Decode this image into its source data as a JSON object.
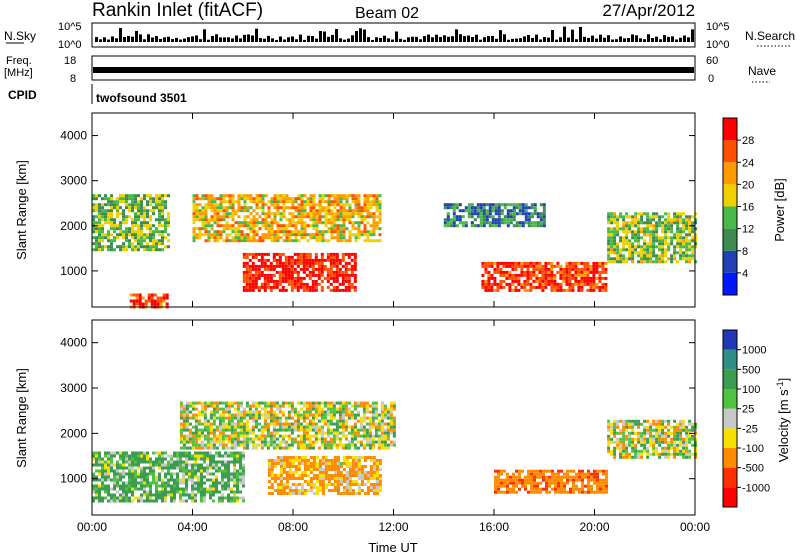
{
  "header": {
    "title": "Rankin Inlet (fitACF)",
    "beam": "Beam 02",
    "date": "27/Apr/2012"
  },
  "noise_panel": {
    "left_label": "N.Sky",
    "right_label": "N.Search",
    "left_top_tick": "10^5",
    "left_bottom_tick": "10^0",
    "right_top_tick": "10^5",
    "right_bottom_tick": "10^0"
  },
  "freq_panel": {
    "left_label_top": "Freq.",
    "left_label_unit": "[MHz]",
    "right_label": "Nave",
    "left_top_tick": "18",
    "left_bottom_tick": "8",
    "right_top_tick": "60",
    "right_bottom_tick": "0"
  },
  "cpid": {
    "label": "CPID",
    "value": "twofsound 3501"
  },
  "x_axis": {
    "ticks": [
      "00:00",
      "04:00",
      "08:00",
      "12:00",
      "16:00",
      "20:00",
      "00:00"
    ],
    "label": "Time UT"
  },
  "colors": {
    "power": [
      "#0018ff",
      "#1f40b8",
      "#3c8c50",
      "#48b848",
      "#f0d000",
      "#ff9a00",
      "#ff5000",
      "#ff0000"
    ],
    "velocity": [
      "#2038b8",
      "#2e8f86",
      "#3c9c50",
      "#52c040",
      "#c8c8c8",
      "#f5e000",
      "#ff8c00",
      "#ff3000",
      "#ff0000"
    ]
  },
  "chart_data": [
    {
      "type": "heatmap",
      "panel": "power",
      "ylabel": "Slant Range [km]",
      "xlabel": "",
      "xlim": [
        "00:00",
        "24:00"
      ],
      "ylim": [
        200,
        4500
      ],
      "yticks": [
        "1000",
        "2000",
        "3000",
        "4000"
      ],
      "colorbar_label": "Power [dB]",
      "colorbar_ticks": [
        "4",
        "8",
        "12",
        "16",
        "20",
        "24",
        "28"
      ],
      "dominant_regions": [
        {
          "time": [
            "00:00",
            "03:00"
          ],
          "range_km": [
            1500,
            2700
          ],
          "power_db": 14
        },
        {
          "time": [
            "01:30",
            "03:00"
          ],
          "range_km": [
            200,
            500
          ],
          "power_db": 28
        },
        {
          "time": [
            "04:00",
            "11:30"
          ],
          "range_km": [
            1700,
            2700
          ],
          "power_db": 20
        },
        {
          "time": [
            "06:00",
            "10:30"
          ],
          "range_km": [
            600,
            1400
          ],
          "power_db": 30
        },
        {
          "time": [
            "15:30",
            "20:30"
          ],
          "range_km": [
            600,
            1200
          ],
          "power_db": 28
        },
        {
          "time": [
            "14:00",
            "18:00"
          ],
          "range_km": [
            2000,
            2500
          ],
          "power_db": 10
        },
        {
          "time": [
            "20:30",
            "24:00"
          ],
          "range_km": [
            1200,
            2300
          ],
          "power_db": 15
        }
      ]
    },
    {
      "type": "heatmap",
      "panel": "velocity",
      "ylabel": "Slant Range [km]",
      "xlabel": "Time UT",
      "xlim": [
        "00:00",
        "24:00"
      ],
      "ylim": [
        200,
        4500
      ],
      "yticks": [
        "1000",
        "2000",
        "3000",
        "4000"
      ],
      "colorbar_label": "Velocity [m s^-1]",
      "colorbar_ticks": [
        "1000",
        "500",
        "100",
        "25",
        "-25",
        "-100",
        "-500",
        "-1000"
      ],
      "dominant_regions": [
        {
          "time": [
            "00:00",
            "06:00"
          ],
          "range_km": [
            500,
            1600
          ],
          "velocity": 120
        },
        {
          "time": [
            "03:30",
            "12:00"
          ],
          "range_km": [
            1700,
            2700
          ],
          "velocity": 0
        },
        {
          "time": [
            "07:00",
            "11:30"
          ],
          "range_km": [
            700,
            1500
          ],
          "velocity": -150
        },
        {
          "time": [
            "16:00",
            "20:30"
          ],
          "range_km": [
            700,
            1200
          ],
          "velocity": -400
        },
        {
          "time": [
            "20:30",
            "24:00"
          ],
          "range_km": [
            1500,
            2300
          ],
          "velocity": 0
        }
      ]
    }
  ]
}
